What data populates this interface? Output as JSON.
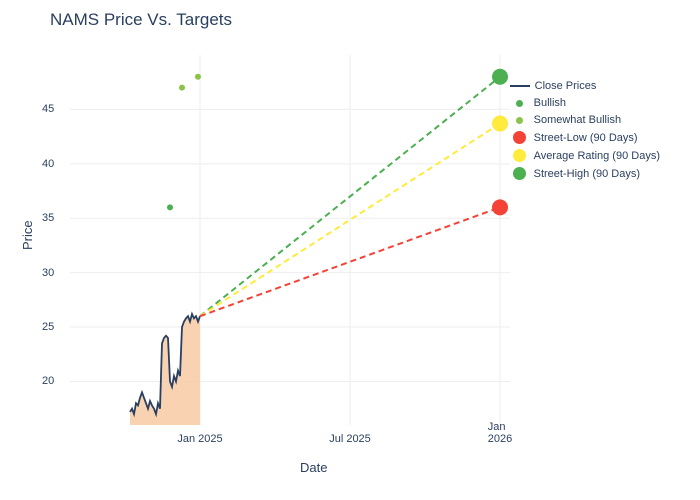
{
  "chart": {
    "type": "line_scatter",
    "title": "NAMS Price Vs. Targets",
    "title_color": "#2a3f5f",
    "title_fontsize": 17,
    "xlabel": "Date",
    "ylabel": "Price",
    "label_fontsize": 13,
    "label_color": "#2a3f5f",
    "background_color": "#ffffff",
    "grid_color": "#eeeeee",
    "tick_fontsize": 11,
    "tick_color": "#2a3f5f",
    "ylim": [
      16,
      50
    ],
    "yticks": [
      20,
      25,
      30,
      35,
      40,
      45
    ],
    "xticks": [
      {
        "label": "Jan 2025",
        "pos": 130
      },
      {
        "label": "Jul 2025",
        "pos": 280
      },
      {
        "label": "Jan 2026",
        "pos": 430
      }
    ],
    "price_line": {
      "color": "#2a3f5f",
      "width": 1.8,
      "area_fill": "#f8c89e",
      "area_opacity": 0.8,
      "points": [
        [
          60,
          17.2
        ],
        [
          62,
          17.5
        ],
        [
          64,
          17.0
        ],
        [
          66,
          18.0
        ],
        [
          68,
          17.8
        ],
        [
          70,
          18.5
        ],
        [
          72,
          19.0
        ],
        [
          74,
          18.5
        ],
        [
          76,
          18.0
        ],
        [
          78,
          17.5
        ],
        [
          80,
          18.2
        ],
        [
          82,
          17.8
        ],
        [
          84,
          17.5
        ],
        [
          86,
          17.0
        ],
        [
          88,
          18.0
        ],
        [
          90,
          17.5
        ],
        [
          92,
          23.5
        ],
        [
          94,
          24.0
        ],
        [
          96,
          24.2
        ],
        [
          98,
          24.0
        ],
        [
          100,
          20.0
        ],
        [
          102,
          19.5
        ],
        [
          104,
          20.5
        ],
        [
          106,
          20.0
        ],
        [
          108,
          21.0
        ],
        [
          110,
          20.5
        ],
        [
          112,
          25.0
        ],
        [
          114,
          25.5
        ],
        [
          116,
          25.8
        ],
        [
          118,
          26.0
        ],
        [
          120,
          25.5
        ],
        [
          122,
          26.2
        ],
        [
          124,
          25.8
        ],
        [
          126,
          26.0
        ],
        [
          128,
          25.5
        ],
        [
          130,
          26.0
        ]
      ]
    },
    "bullish_dots": {
      "color": "#4caf50",
      "size": 6,
      "points": [
        [
          100,
          36
        ]
      ]
    },
    "somewhat_bullish_dots": {
      "color": "#8bc34a",
      "size": 6,
      "points": [
        [
          112,
          47
        ],
        [
          128,
          48
        ]
      ]
    },
    "target_lines": [
      {
        "name": "street-high",
        "color": "#4caf50",
        "dash": "6,4",
        "width": 2,
        "start": [
          130,
          26
        ],
        "end": [
          430,
          48
        ],
        "dot_size": 16
      },
      {
        "name": "average",
        "color": "#ffeb3b",
        "dash": "6,4",
        "width": 2,
        "start": [
          130,
          26
        ],
        "end": [
          430,
          43.7
        ],
        "dot_size": 16
      },
      {
        "name": "street-low",
        "color": "#f44336",
        "dash": "6,4",
        "width": 2,
        "start": [
          130,
          26
        ],
        "end": [
          430,
          36
        ],
        "dot_size": 16
      }
    ],
    "legend": {
      "items": [
        {
          "type": "line",
          "color": "#2a3f5f",
          "label": "Close Prices"
        },
        {
          "type": "dot",
          "color": "#4caf50",
          "label": "Bullish"
        },
        {
          "type": "dot",
          "color": "#8bc34a",
          "label": "Somewhat Bullish"
        },
        {
          "type": "bigdot",
          "color": "#f44336",
          "label": "Street-Low (90 Days)"
        },
        {
          "type": "bigdot",
          "color": "#ffeb3b",
          "label": "Average Rating (90 Days)"
        },
        {
          "type": "bigdot",
          "color": "#4caf50",
          "label": "Street-High (90 Days)"
        }
      ]
    }
  }
}
